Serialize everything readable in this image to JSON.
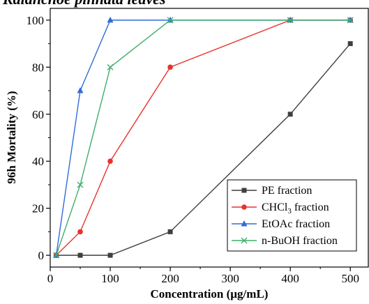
{
  "chart_data": {
    "type": "line",
    "title": "Kalanchoe pinnata leaves",
    "xlabel": "Concentration (µg/mL)",
    "ylabel": "96h Mortality (%)",
    "xlim": [
      0,
      530
    ],
    "ylim": [
      -5,
      105
    ],
    "xticks": [
      0,
      100,
      200,
      300,
      400,
      500
    ],
    "yticks": [
      0,
      20,
      40,
      60,
      80,
      100
    ],
    "grid": false,
    "legend_position": "bottom-right",
    "x": [
      10,
      50,
      100,
      200,
      400,
      500
    ],
    "series": [
      {
        "name": "PE fraction",
        "name_main": "PE fraction",
        "name_sub": "",
        "name_tail": "",
        "color": "#3f3f3f",
        "marker": "square",
        "values": [
          0,
          0,
          0,
          10,
          60,
          90
        ]
      },
      {
        "name": "CHCl3 fraction",
        "name_main": "CHCl",
        "name_sub": "3",
        "name_tail": " fraction",
        "color": "#e8322d",
        "marker": "circle",
        "values": [
          0,
          10,
          40,
          80,
          100,
          100
        ]
      },
      {
        "name": "EtOAc fraction",
        "name_main": "EtOAc fraction",
        "name_sub": "",
        "name_tail": "",
        "color": "#2f6bd9",
        "marker": "triangle",
        "values": [
          0,
          70,
          100,
          100,
          100,
          100
        ]
      },
      {
        "name": "n-BuOH fraction",
        "name_main": "n-BuOH fraction",
        "name_sub": "",
        "name_tail": "",
        "color": "#3fae6a",
        "marker": "x",
        "values": [
          0,
          30,
          80,
          100,
          100,
          100
        ]
      }
    ]
  }
}
